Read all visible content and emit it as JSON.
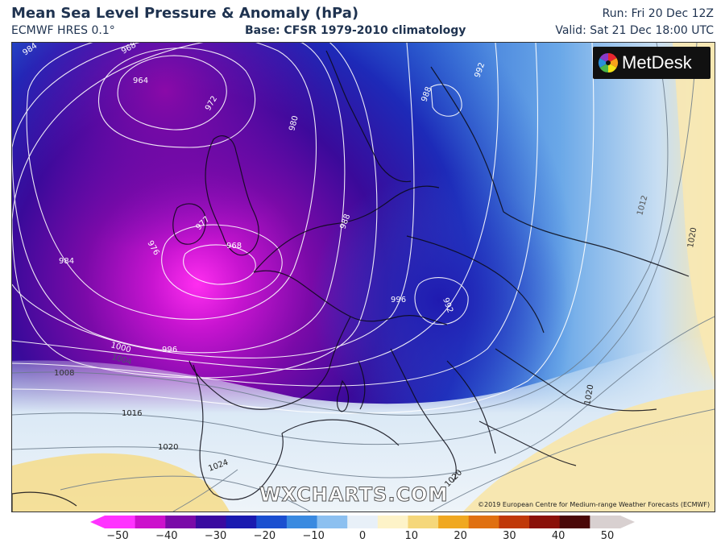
{
  "header": {
    "title": "Mean Sea Level Pressure & Anomaly (hPa)",
    "model": "ECMWF HRES 0.1°",
    "base": "Base: CFSR 1979-2010 climatology",
    "run": "Run: Fri 20 Dec 12Z",
    "valid": "Valid: Sat 21 Dec 18:00 UTC"
  },
  "branding": {
    "logo_text": "MetDesk",
    "watermark": "WXCHARTS.COM",
    "copyright": "©2019 European Centre for Medium-range Weather Forecasts (ECMWF)"
  },
  "isobar_labels": [
    "984",
    "968",
    "964",
    "972",
    "980",
    "977",
    "968",
    "976",
    "984",
    "988",
    "988",
    "992",
    "996",
    "992",
    "1000",
    "1004",
    "996",
    "1008",
    "1012",
    "1020",
    "1016",
    "1020",
    "1020",
    "1024",
    "1020"
  ],
  "colorbar": {
    "ticks": [
      "−50",
      "−40",
      "−30",
      "−20",
      "−10",
      "0",
      "10",
      "20",
      "30",
      "40",
      "50"
    ],
    "colors": [
      "#ff33ff",
      "#cc11cc",
      "#7a0aa8",
      "#3a0aa0",
      "#1a1ab0",
      "#1a4fd0",
      "#3a8ae0",
      "#8cc0f0",
      "#e8f0f8",
      "#fdf3c8",
      "#f5d77a",
      "#f0a820",
      "#e07010",
      "#c03808",
      "#8a1008",
      "#4a0808",
      "#d8d0d0"
    ]
  }
}
